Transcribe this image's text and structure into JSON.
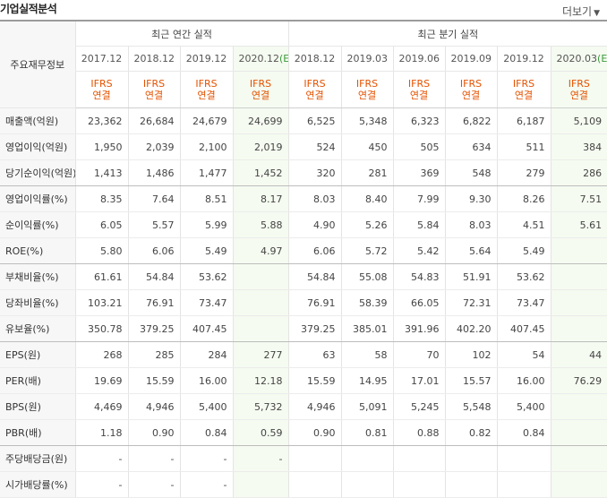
{
  "header": {
    "title": "기업실적분석",
    "more_label": "더보기",
    "more_arrow": "▼"
  },
  "table": {
    "corner_label": "주요재무정보",
    "group_annual": "최근 연간 실적",
    "group_quarter": "최근 분기 실적",
    "annual_periods": [
      "2017.12",
      "2018.12",
      "2019.12",
      "2020.12"
    ],
    "annual_estimate_suffix": "(E)",
    "quarter_periods": [
      "2018.12",
      "2019.03",
      "2019.06",
      "2019.09",
      "2019.12",
      "2020.03"
    ],
    "quarter_estimate_suffix": "(E)",
    "ifrs_line1": "IFRS",
    "ifrs_line2": "연결",
    "rows": [
      {
        "label": "매출액(억원)",
        "values": [
          "23,362",
          "26,684",
          "24,679",
          "24,699",
          "6,525",
          "5,348",
          "6,323",
          "6,822",
          "6,187",
          "5,109"
        ]
      },
      {
        "label": "영업이익(억원)",
        "values": [
          "1,950",
          "2,039",
          "2,100",
          "2,019",
          "524",
          "450",
          "505",
          "634",
          "511",
          "384"
        ]
      },
      {
        "label": "당기순이익(억원)",
        "values": [
          "1,413",
          "1,486",
          "1,477",
          "1,452",
          "320",
          "281",
          "369",
          "548",
          "279",
          "286"
        ]
      },
      {
        "label": "영업이익률(%)",
        "values": [
          "8.35",
          "7.64",
          "8.51",
          "8.17",
          "8.03",
          "8.40",
          "7.99",
          "9.30",
          "8.26",
          "7.51"
        ]
      },
      {
        "label": "순이익률(%)",
        "values": [
          "6.05",
          "5.57",
          "5.99",
          "5.88",
          "4.90",
          "5.26",
          "5.84",
          "8.03",
          "4.51",
          "5.61"
        ]
      },
      {
        "label": "ROE(%)",
        "values": [
          "5.80",
          "6.06",
          "5.49",
          "4.97",
          "6.06",
          "5.72",
          "5.42",
          "5.64",
          "5.49",
          ""
        ]
      },
      {
        "label": "부채비율(%)",
        "values": [
          "61.61",
          "54.84",
          "53.62",
          "",
          "54.84",
          "55.08",
          "54.83",
          "51.91",
          "53.62",
          ""
        ]
      },
      {
        "label": "당좌비율(%)",
        "values": [
          "103.21",
          "76.91",
          "73.47",
          "",
          "76.91",
          "58.39",
          "66.05",
          "72.31",
          "73.47",
          ""
        ]
      },
      {
        "label": "유보율(%)",
        "values": [
          "350.78",
          "379.25",
          "407.45",
          "",
          "379.25",
          "385.01",
          "391.96",
          "402.20",
          "407.45",
          ""
        ]
      },
      {
        "label": "EPS(원)",
        "values": [
          "268",
          "285",
          "284",
          "277",
          "63",
          "58",
          "70",
          "102",
          "54",
          "44"
        ]
      },
      {
        "label": "PER(배)",
        "values": [
          "19.69",
          "15.59",
          "16.00",
          "12.18",
          "15.59",
          "14.95",
          "17.01",
          "15.57",
          "16.00",
          "76.29"
        ]
      },
      {
        "label": "BPS(원)",
        "values": [
          "4,469",
          "4,946",
          "5,400",
          "5,732",
          "4,946",
          "5,091",
          "5,245",
          "5,548",
          "5,400",
          ""
        ]
      },
      {
        "label": "PBR(배)",
        "values": [
          "1.18",
          "0.90",
          "0.84",
          "0.59",
          "0.90",
          "0.81",
          "0.88",
          "0.82",
          "0.84",
          ""
        ]
      },
      {
        "label": "주당배당금(원)",
        "values": [
          "-",
          "-",
          "-",
          "-",
          "",
          "",
          "",
          "",
          "",
          ""
        ]
      },
      {
        "label": "시가배당률(%)",
        "values": [
          "-",
          "-",
          "-",
          "",
          "",
          "",
          "",
          "",
          "",
          ""
        ]
      }
    ]
  }
}
